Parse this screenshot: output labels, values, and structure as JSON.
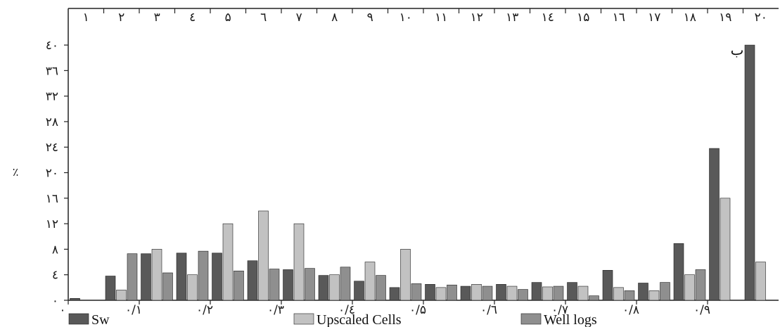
{
  "chart_data": {
    "type": "bar",
    "panel_label": "ب",
    "ylabel": "٪",
    "ylim": [
      0,
      41
    ],
    "y_ticks": [
      {
        "value": 0,
        "label": "۰"
      },
      {
        "value": 4,
        "label": "٤"
      },
      {
        "value": 8,
        "label": "۸"
      },
      {
        "value": 12,
        "label": "۱۲"
      },
      {
        "value": 16,
        "label": "۱٦"
      },
      {
        "value": 20,
        "label": "۲۰"
      },
      {
        "value": 24,
        "label": "۲٤"
      },
      {
        "value": 28,
        "label": "۲۸"
      },
      {
        "value": 32,
        "label": "۳۲"
      },
      {
        "value": 36,
        "label": "۳٦"
      },
      {
        "value": 40,
        "label": "٤۰"
      }
    ],
    "xlim": [
      0,
      1
    ],
    "x_ticks": [
      {
        "value": 0,
        "label": "۰"
      },
      {
        "value": 0.1,
        "label": "۰/۱"
      },
      {
        "value": 0.2,
        "label": "۰/۲"
      },
      {
        "value": 0.3,
        "label": "۰/۳"
      },
      {
        "value": 0.4,
        "label": "۰/٤"
      },
      {
        "value": 0.5,
        "label": "۰/۵"
      },
      {
        "value": 0.6,
        "label": "۰/٦"
      },
      {
        "value": 0.7,
        "label": "۰/۷"
      },
      {
        "value": 0.8,
        "label": "۰/۸"
      },
      {
        "value": 0.9,
        "label": "۰/۹"
      }
    ],
    "categories": [
      "۱",
      "۲",
      "۳",
      "٤",
      "۵",
      "٦",
      "۷",
      "۸",
      "۹",
      "۱۰",
      "۱۱",
      "۱۲",
      "۱۳",
      "۱٤",
      "۱۵",
      "۱٦",
      "۱۷",
      "۱۸",
      "۱۹",
      "۲۰"
    ],
    "series": [
      {
        "name": "Sw",
        "color": "#595959",
        "values": [
          0.3,
          3.8,
          7.3,
          7.4,
          7.4,
          6.2,
          4.8,
          3.9,
          3.0,
          2.0,
          2.5,
          2.2,
          2.5,
          2.8,
          2.8,
          4.7,
          2.7,
          8.9,
          23.8,
          40.0
        ]
      },
      {
        "name": "Upscaled Cells",
        "color": "#c2c2c2",
        "values": [
          0.0,
          1.6,
          8.0,
          4.0,
          12.0,
          14.0,
          12.0,
          4.0,
          6.0,
          8.0,
          2.0,
          2.5,
          2.2,
          2.1,
          2.2,
          2.0,
          1.5,
          4.0,
          16.0,
          6.0
        ]
      },
      {
        "name": "Well logs",
        "color": "#8f8f8f",
        "values": [
          0.0,
          7.3,
          4.3,
          7.7,
          4.6,
          4.9,
          5.0,
          5.2,
          3.9,
          2.6,
          2.4,
          2.2,
          1.7,
          2.2,
          0.7,
          1.5,
          2.8,
          4.8,
          0.0,
          0.0
        ]
      }
    ],
    "grid": false,
    "legend": "bottom"
  }
}
